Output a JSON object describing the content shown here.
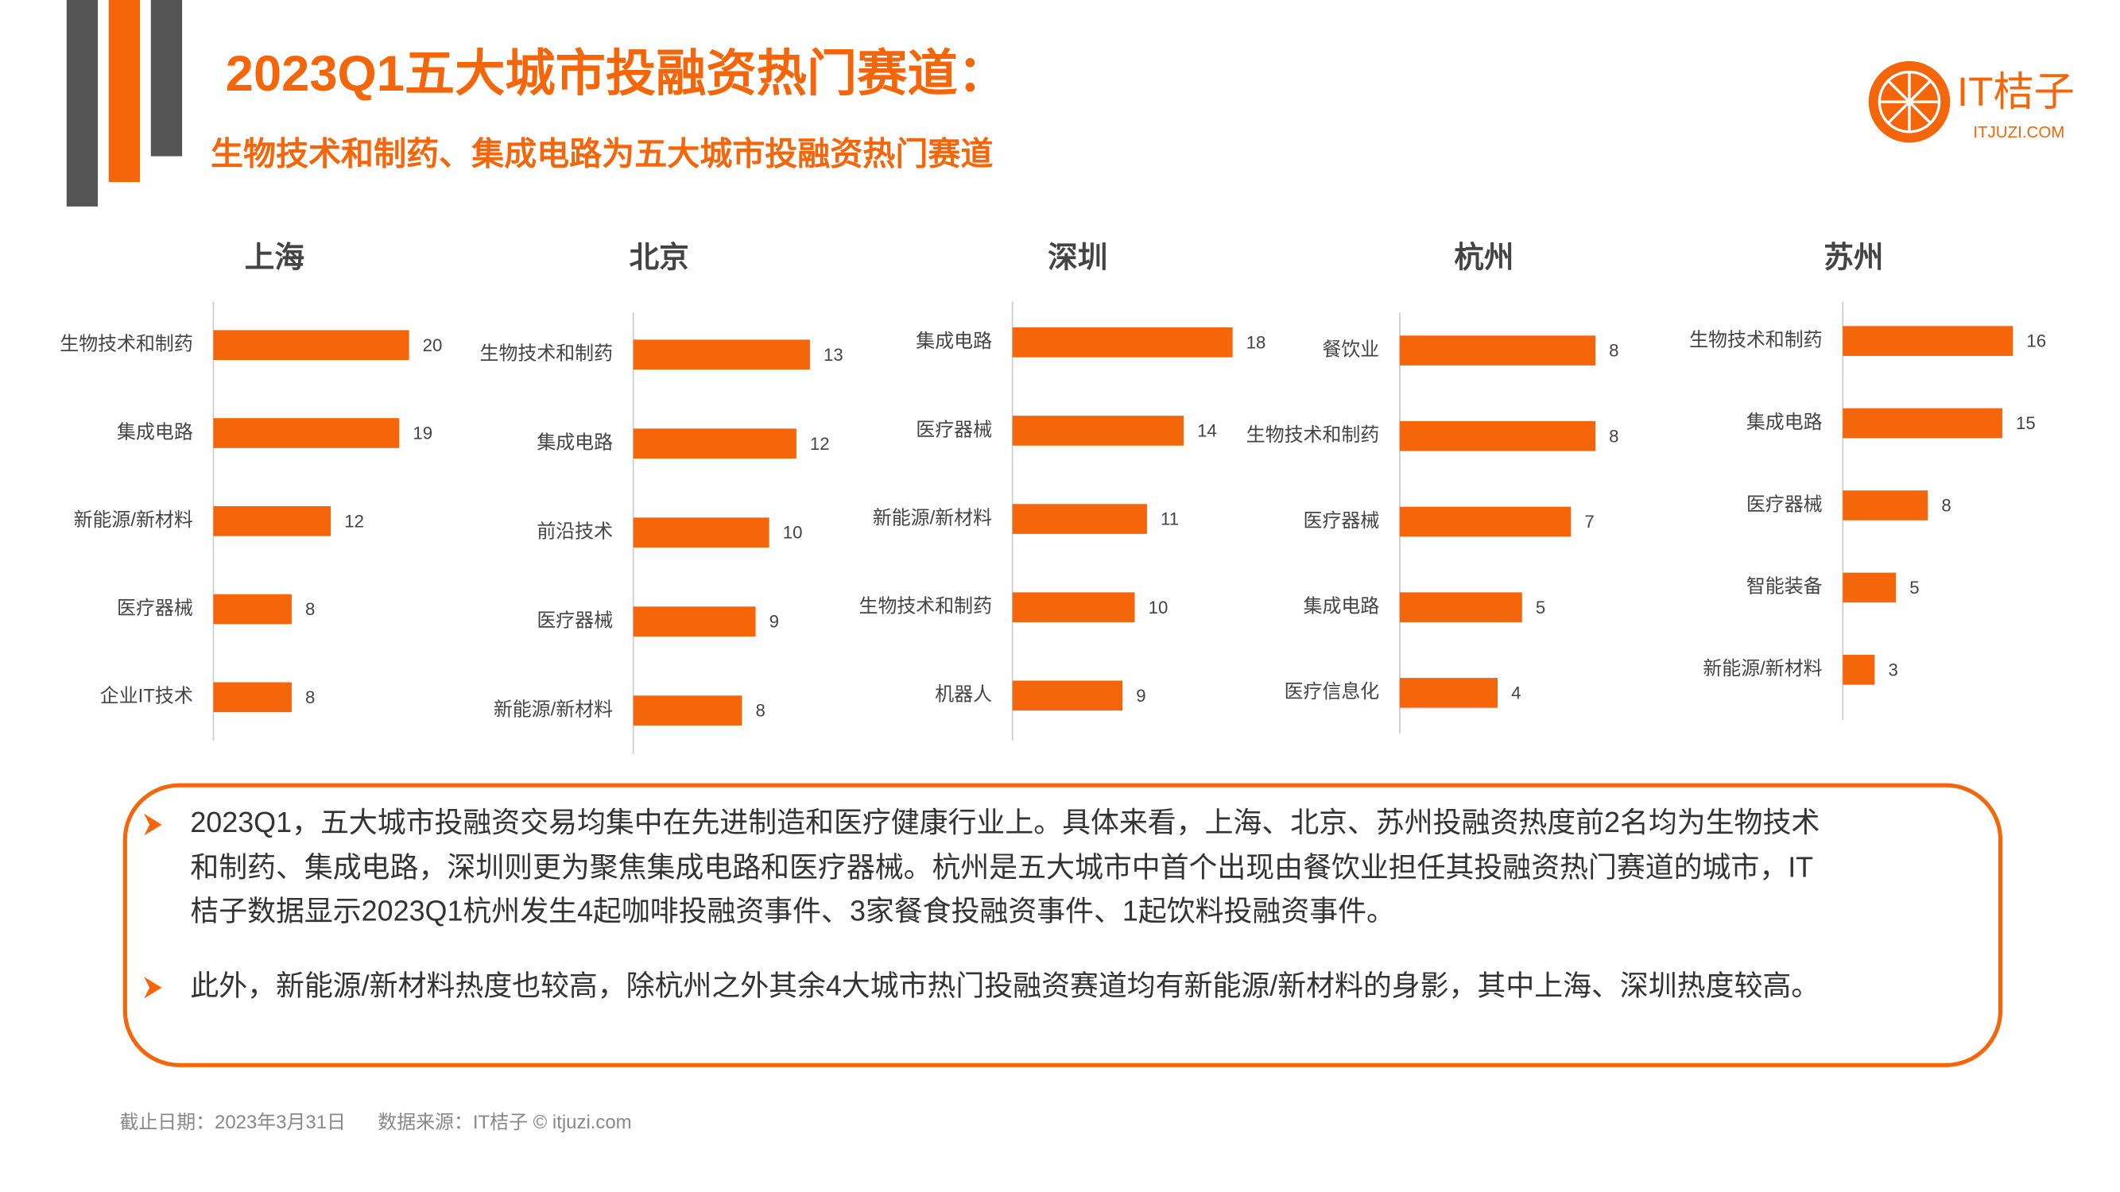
{
  "title": "2023Q1五大城市投融资热门赛道：",
  "subtitle": "生物技术和制药、集成电路为五大城市投融资热门赛道",
  "logo": {
    "name": "IT桔子",
    "url": "ITJUZI.COM"
  },
  "chart_data": [
    {
      "type": "bar",
      "orientation": "horizontal",
      "title": "上海",
      "color": "#f5650a",
      "categories": [
        "生物技术和制药",
        "集成电路",
        "新能源/新材料",
        "医疗器械",
        "企业IT技术"
      ],
      "values": [
        20,
        19,
        12,
        8,
        8
      ],
      "xlim": [
        0,
        25
      ]
    },
    {
      "type": "bar",
      "orientation": "horizontal",
      "title": "北京",
      "color": "#f5650a",
      "categories": [
        "生物技术和制药",
        "集成电路",
        "前沿技术",
        "医疗器械",
        "新能源/新材料"
      ],
      "values": [
        13,
        12,
        10,
        9,
        8
      ],
      "xlim": [
        0,
        18
      ]
    },
    {
      "type": "bar",
      "orientation": "horizontal",
      "title": "深圳",
      "color": "#f5650a",
      "categories": [
        "集成电路",
        "医疗器械",
        "新能源/新材料",
        "生物技术和制药",
        "机器人"
      ],
      "values": [
        18,
        14,
        11,
        10,
        9
      ],
      "xlim": [
        0,
        20
      ]
    },
    {
      "type": "bar",
      "orientation": "horizontal",
      "title": "杭州",
      "color": "#f5650a",
      "categories": [
        "餐饮业",
        "生物技术和制药",
        "医疗器械",
        "集成电路",
        "医疗信息化"
      ],
      "values": [
        8,
        8,
        7,
        5,
        4
      ],
      "xlim": [
        0,
        10
      ]
    },
    {
      "type": "bar",
      "orientation": "horizontal",
      "title": "苏州",
      "color": "#f5650a",
      "categories": [
        "生物技术和制药",
        "集成电路",
        "医疗器械",
        "智能装备",
        "新能源/新材料"
      ],
      "values": [
        16,
        15,
        8,
        5,
        3
      ],
      "xlim": [
        0,
        23
      ]
    }
  ],
  "notes": [
    [
      "2023Q1，五大城市投融资交易均集中在先进制造和医疗健康行业上。具体来看，上海、北京、苏州投融资热度前2名均为生物技术",
      "和制药、集成电路，深圳则更为聚焦集成电路和医疗器械。杭州是五大城市中首个出现由餐饮业担任其投融资热门赛道的城市，IT",
      "桔子数据显示2023Q1杭州发生4起咖啡投融资事件、3家餐食投融资事件、1起饮料投融资事件。"
    ],
    [
      "此外，新能源/新材料热度也较高，除杭州之外其余4大城市热门投融资赛道均有新能源/新材料的身影，其中上海、深圳热度较高。"
    ]
  ],
  "footer": {
    "date": "截止日期：2023年3月31日",
    "source": "数据来源：IT桔子 © itjuzi.com"
  }
}
